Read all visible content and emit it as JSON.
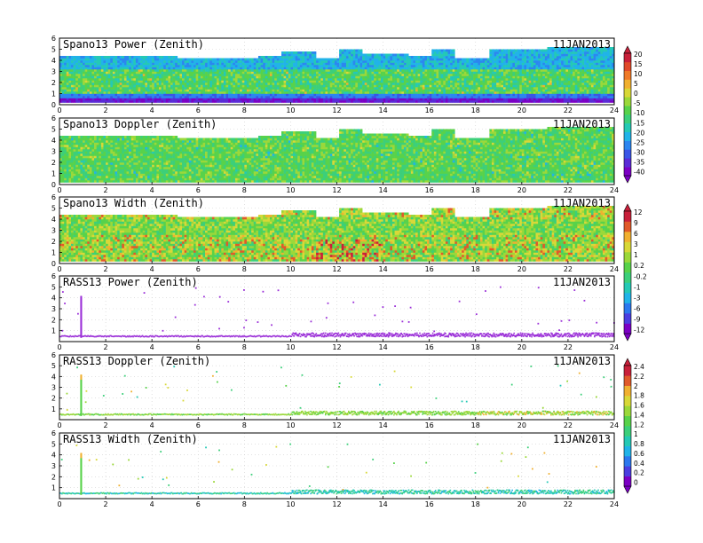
{
  "date_label": "11JAN2013",
  "colors": {
    "power": [
      "#7b00c4",
      "#5a2bd6",
      "#3a55e6",
      "#2c86f0",
      "#21b3e8",
      "#25c9b5",
      "#3ccf7a",
      "#58d24a",
      "#9bd83a",
      "#d8d838",
      "#f0b030",
      "#f07a28",
      "#e04a2a",
      "#c8203a"
    ],
    "doppler": [
      "#7b00c4",
      "#4b3ee0",
      "#2c78ee",
      "#21b3e8",
      "#25c9b5",
      "#3ccf7a",
      "#58d24a",
      "#9bd83a",
      "#d8d838",
      "#f0b030",
      "#e05a2a",
      "#c8203a"
    ],
    "rass_power": "#9b30d8"
  },
  "chart_data": [
    {
      "type": "heatmap",
      "title": "Spano13 Power (Zenith)",
      "date": "11JAN2013",
      "xlim": [
        0,
        24
      ],
      "ylim": [
        0,
        6
      ],
      "xticks": [
        "0",
        "2",
        "4",
        "6",
        "8",
        "10",
        "12",
        "14",
        "16",
        "18",
        "20",
        "22",
        "24"
      ],
      "yticks": [
        "0",
        "1",
        "2",
        "3",
        "4",
        "5",
        "6"
      ],
      "top_height_profile": {
        "x": [
          0,
          3,
          5,
          8.5,
          9.5,
          11,
          12,
          13,
          15,
          16,
          17,
          18.5,
          21,
          24
        ],
        "y": [
          4.3,
          4.3,
          4.2,
          4.4,
          4.7,
          4.1,
          4.9,
          4.5,
          4.3,
          4.9,
          4.1,
          4.9,
          5.1,
          5.3
        ]
      },
      "colorbar": "power"
    },
    {
      "type": "heatmap",
      "title": "Spano13 Doppler (Zenith)",
      "date": "11JAN2013",
      "xlim": [
        0,
        24
      ],
      "ylim": [
        0,
        6
      ],
      "xticks": [
        "0",
        "2",
        "4",
        "6",
        "8",
        "10",
        "12",
        "14",
        "16",
        "18",
        "20",
        "22",
        "24"
      ],
      "yticks": [
        "0",
        "1",
        "2",
        "3",
        "4",
        "5",
        "6"
      ],
      "top_height_profile": {
        "x": [
          0,
          3,
          5,
          8.5,
          9.5,
          11,
          12,
          13,
          15,
          16,
          17,
          18.5,
          21,
          24
        ],
        "y": [
          4.3,
          4.3,
          4.2,
          4.4,
          4.7,
          4.1,
          4.9,
          4.5,
          4.3,
          4.9,
          4.1,
          4.9,
          5.1,
          5.3
        ]
      },
      "colorbar": "power",
      "colorbar_ticks": [
        "20",
        "15",
        "10",
        "5",
        "0",
        "-5",
        "-10",
        "-15",
        "-20",
        "-25",
        "-30",
        "-35",
        "-40"
      ]
    },
    {
      "type": "heatmap",
      "title": "Spano13 Width (Zenith)",
      "date": "11JAN2013",
      "xlim": [
        0,
        24
      ],
      "ylim": [
        0,
        6
      ],
      "xticks": [
        "0",
        "2",
        "4",
        "6",
        "8",
        "10",
        "12",
        "14",
        "16",
        "18",
        "20",
        "22",
        "24"
      ],
      "yticks": [
        "0",
        "1",
        "2",
        "3",
        "4",
        "5",
        "6"
      ],
      "top_height_profile": {
        "x": [
          0,
          3,
          5,
          8.5,
          9.5,
          11,
          12,
          13,
          15,
          16,
          17,
          18.5,
          21,
          24
        ],
        "y": [
          4.3,
          4.3,
          4.2,
          4.4,
          4.7,
          4.1,
          4.9,
          4.5,
          4.3,
          4.9,
          4.1,
          4.9,
          5.1,
          5.3
        ]
      },
      "colorbar": "doppler"
    },
    {
      "type": "scatter",
      "title": "RASS13 Power (Zenith)",
      "date": "11JAN2013",
      "xlim": [
        0,
        24
      ],
      "ylim": [
        0,
        6
      ],
      "xticks": [
        "0",
        "2",
        "4",
        "6",
        "8",
        "10",
        "12",
        "14",
        "16",
        "18",
        "20",
        "22",
        "24"
      ],
      "yticks": [
        "1",
        "2",
        "3",
        "4",
        "5",
        "6"
      ],
      "base_height": 0.5,
      "spike_x": 0.9,
      "spike_top": 4.2,
      "colorbar": "doppler",
      "colorbar_ticks": [
        "12",
        "9",
        "6",
        "3",
        "1",
        "0.2",
        "-0.2",
        "-1",
        "-3",
        "-6",
        "-9",
        "-12"
      ]
    },
    {
      "type": "scatter",
      "title": "RASS13 Doppler (Zenith)",
      "date": "11JAN2013",
      "xlim": [
        0,
        24
      ],
      "ylim": [
        0,
        6
      ],
      "xticks": [
        "0",
        "2",
        "4",
        "6",
        "8",
        "10",
        "12",
        "14",
        "16",
        "18",
        "20",
        "22",
        "24"
      ],
      "yticks": [
        "1",
        "2",
        "3",
        "4",
        "5",
        "6"
      ],
      "base_height": 0.5,
      "spike_x": 0.9,
      "spike_top": 4.2,
      "colorbar": "doppler"
    },
    {
      "type": "scatter",
      "title": "RASS13 Width (Zenith)",
      "date": "11JAN2013",
      "xlim": [
        0,
        24
      ],
      "ylim": [
        0,
        6
      ],
      "xticks": [
        "0",
        "2",
        "4",
        "6",
        "8",
        "10",
        "12",
        "14",
        "16",
        "18",
        "20",
        "22",
        "24"
      ],
      "yticks": [
        "1",
        "2",
        "3",
        "4",
        "5",
        "6"
      ],
      "base_height": 0.5,
      "spike_x": 0.9,
      "spike_top": 4.2,
      "colorbar": "doppler",
      "colorbar_ticks": [
        "2.4",
        "2.2",
        "2",
        "1.8",
        "1.6",
        "1.4",
        "1.2",
        "1",
        "0.8",
        "0.6",
        "0.4",
        "0.2",
        "0"
      ]
    }
  ]
}
